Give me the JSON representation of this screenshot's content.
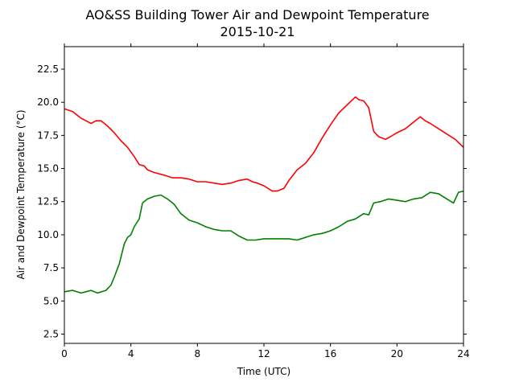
{
  "chart_data": {
    "type": "line",
    "title": "AO&SS Building Tower Air and Dewpoint Temperature",
    "subtitle": "2015-10-21",
    "xlabel": "Time (UTC)",
    "ylabel": "Air and Dewpoint Temperature (°C)",
    "xlim": [
      0,
      24
    ],
    "ylim": [
      1.8,
      24.2
    ],
    "xticks": [
      0,
      4,
      8,
      12,
      16,
      20,
      24
    ],
    "yticks": [
      2.5,
      5.0,
      7.5,
      10.0,
      12.5,
      15.0,
      17.5,
      20.0,
      22.5
    ],
    "xtick_labels": [
      "0",
      "4",
      "8",
      "12",
      "16",
      "20",
      "24"
    ],
    "ytick_labels": [
      "2.5",
      "5.0",
      "7.5",
      "10.0",
      "12.5",
      "15.0",
      "17.5",
      "20.0",
      "22.5"
    ],
    "grid": false,
    "legend": "none",
    "series": [
      {
        "color": "#ff0000",
        "x": [
          0,
          0.5,
          1,
          1.3,
          1.6,
          1.9,
          2.2,
          2.6,
          3.0,
          3.4,
          3.8,
          4.2,
          4.5,
          4.8,
          5.0,
          5.4,
          6.0,
          6.5,
          7.0,
          7.5,
          8.0,
          8.5,
          9.0,
          9.5,
          10.0,
          10.5,
          11.0,
          11.3,
          11.6,
          12.0,
          12.5,
          12.8,
          13.2,
          13.5,
          14.0,
          14.5,
          15.0,
          15.5,
          16.0,
          16.5,
          17.0,
          17.5,
          17.7,
          18.0,
          18.3,
          18.6,
          18.9,
          19.3,
          19.6,
          20.0,
          20.5,
          21.0,
          21.4,
          21.7,
          22.0,
          22.5,
          23.0,
          23.5,
          24.0
        ],
        "values": [
          19.5,
          19.3,
          18.8,
          18.6,
          18.4,
          18.6,
          18.6,
          18.2,
          17.7,
          17.1,
          16.6,
          15.9,
          15.3,
          15.2,
          14.9,
          14.7,
          14.5,
          14.3,
          14.3,
          14.2,
          14.0,
          14.0,
          13.9,
          13.8,
          13.9,
          14.1,
          14.2,
          14.0,
          13.9,
          13.7,
          13.3,
          13.3,
          13.5,
          14.1,
          14.9,
          15.4,
          16.2,
          17.3,
          18.3,
          19.2,
          19.8,
          20.4,
          20.2,
          20.1,
          19.6,
          17.8,
          17.4,
          17.2,
          17.4,
          17.7,
          18.0,
          18.5,
          18.9,
          18.6,
          18.4,
          18.0,
          17.6,
          17.2,
          16.6
        ]
      },
      {
        "color": "#008000",
        "x": [
          0,
          0.5,
          1.0,
          1.3,
          1.6,
          2.0,
          2.5,
          2.8,
          3.0,
          3.3,
          3.6,
          3.8,
          4.0,
          4.2,
          4.5,
          4.7,
          5.0,
          5.4,
          5.8,
          6.2,
          6.6,
          7.0,
          7.5,
          8.0,
          8.5,
          9.0,
          9.5,
          10.0,
          10.5,
          11.0,
          11.5,
          12.0,
          12.5,
          13.0,
          13.5,
          14.0,
          14.5,
          15.0,
          15.5,
          16.0,
          16.5,
          17.0,
          17.5,
          18.0,
          18.3,
          18.6,
          19.0,
          19.5,
          20.0,
          20.5,
          21.0,
          21.5,
          22.0,
          22.5,
          23.0,
          23.4,
          23.7,
          24.0
        ],
        "values": [
          5.7,
          5.8,
          5.6,
          5.7,
          5.8,
          5.6,
          5.8,
          6.2,
          6.8,
          7.8,
          9.3,
          9.8,
          10.0,
          10.6,
          11.2,
          12.4,
          12.7,
          12.9,
          13.0,
          12.7,
          12.3,
          11.6,
          11.1,
          10.9,
          10.6,
          10.4,
          10.3,
          10.3,
          9.9,
          9.6,
          9.6,
          9.7,
          9.7,
          9.7,
          9.7,
          9.6,
          9.8,
          10.0,
          10.1,
          10.3,
          10.6,
          11.0,
          11.2,
          11.6,
          11.5,
          12.4,
          12.5,
          12.7,
          12.6,
          12.5,
          12.7,
          12.8,
          13.2,
          13.1,
          12.7,
          12.4,
          13.2,
          13.3
        ]
      }
    ]
  }
}
